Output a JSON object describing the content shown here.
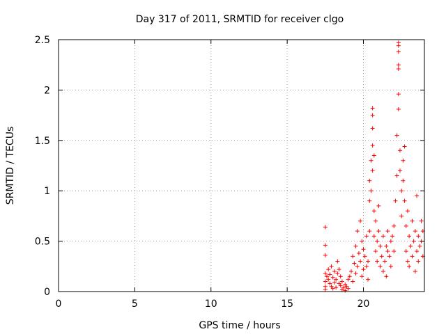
{
  "chart_data": {
    "type": "scatter",
    "title": "Day 317 of 2011, SRMTID for receiver clgo",
    "xlabel": "GPS time / hours",
    "ylabel": "SRMTID / TECUs",
    "xlim": [
      0,
      24
    ],
    "ylim": [
      0,
      2.5
    ],
    "xticks": [
      0,
      5,
      10,
      15,
      20
    ],
    "yticks": [
      0,
      0.5,
      1,
      1.5,
      2,
      2.5
    ],
    "xtick_labels": [
      "0",
      "5",
      "10",
      "15",
      "20"
    ],
    "ytick_labels": [
      "0",
      "0.5",
      "1",
      "1.5",
      "2",
      "2.5"
    ],
    "grid": true,
    "marker": "+",
    "color": "#ff0000",
    "series": [
      {
        "name": "SRMTID",
        "points": [
          [
            17.5,
            0.64
          ],
          [
            17.5,
            0.46
          ],
          [
            17.5,
            0.36
          ],
          [
            17.5,
            0.18
          ],
          [
            17.5,
            0.1
          ],
          [
            17.5,
            0.05
          ],
          [
            17.5,
            0.02
          ],
          [
            17.6,
            0.15
          ],
          [
            17.7,
            0.22
          ],
          [
            17.7,
            0.12
          ],
          [
            17.8,
            0.08
          ],
          [
            17.8,
            0.17
          ],
          [
            17.9,
            0.25
          ],
          [
            17.9,
            0.05
          ],
          [
            18.0,
            0.14
          ],
          [
            18.0,
            0.03
          ],
          [
            18.1,
            0.2
          ],
          [
            18.1,
            0.09
          ],
          [
            18.2,
            0.12
          ],
          [
            18.2,
            0.04
          ],
          [
            18.3,
            0.3
          ],
          [
            18.3,
            0.18
          ],
          [
            18.4,
            0.22
          ],
          [
            18.4,
            0.08
          ],
          [
            18.5,
            0.06
          ],
          [
            18.5,
            0.15
          ],
          [
            18.6,
            0.02
          ],
          [
            18.6,
            0.1
          ],
          [
            18.7,
            0.04
          ],
          [
            18.8,
            0.07
          ],
          [
            18.8,
            0.01
          ],
          [
            18.9,
            0.05
          ],
          [
            19.0,
            0.12
          ],
          [
            19.0,
            0.03
          ],
          [
            19.1,
            0.15
          ],
          [
            19.2,
            0.2
          ],
          [
            19.3,
            0.35
          ],
          [
            19.3,
            0.1
          ],
          [
            19.4,
            0.28
          ],
          [
            19.5,
            0.45
          ],
          [
            19.5,
            0.18
          ],
          [
            19.6,
            0.6
          ],
          [
            19.6,
            0.25
          ],
          [
            19.7,
            0.38
          ],
          [
            19.8,
            0.7
          ],
          [
            19.8,
            0.3
          ],
          [
            19.9,
            0.5
          ],
          [
            19.9,
            0.15
          ],
          [
            20.0,
            0.42
          ],
          [
            20.0,
            0.22
          ],
          [
            20.1,
            0.35
          ],
          [
            20.2,
            0.55
          ],
          [
            20.2,
            0.25
          ],
          [
            20.3,
            0.3
          ],
          [
            20.3,
            0.12
          ],
          [
            20.4,
            0.6
          ],
          [
            20.4,
            0.9
          ],
          [
            20.4,
            1.1
          ],
          [
            20.5,
            1.3
          ],
          [
            20.5,
            1.0
          ],
          [
            20.6,
            1.82
          ],
          [
            20.6,
            1.75
          ],
          [
            20.6,
            1.62
          ],
          [
            20.6,
            1.45
          ],
          [
            20.6,
            1.2
          ],
          [
            20.7,
            1.35
          ],
          [
            20.7,
            0.8
          ],
          [
            20.7,
            0.55
          ],
          [
            20.8,
            0.4
          ],
          [
            20.8,
            0.7
          ],
          [
            20.9,
            0.5
          ],
          [
            20.9,
            0.3
          ],
          [
            21.0,
            0.85
          ],
          [
            21.0,
            0.6
          ],
          [
            21.1,
            0.45
          ],
          [
            21.1,
            0.25
          ],
          [
            21.2,
            0.35
          ],
          [
            21.3,
            0.55
          ],
          [
            21.3,
            0.2
          ],
          [
            21.4,
            0.3
          ],
          [
            21.5,
            0.45
          ],
          [
            21.5,
            0.15
          ],
          [
            21.6,
            0.4
          ],
          [
            21.6,
            0.6
          ],
          [
            21.7,
            0.35
          ],
          [
            21.8,
            0.5
          ],
          [
            21.8,
            0.25
          ],
          [
            21.9,
            0.55
          ],
          [
            22.0,
            0.4
          ],
          [
            22.0,
            0.65
          ],
          [
            22.1,
            0.9
          ],
          [
            22.2,
            1.15
          ],
          [
            22.2,
            1.55
          ],
          [
            22.3,
            2.47
          ],
          [
            22.3,
            2.44
          ],
          [
            22.3,
            2.38
          ],
          [
            22.3,
            2.25
          ],
          [
            22.3,
            2.21
          ],
          [
            22.3,
            1.96
          ],
          [
            22.3,
            1.81
          ],
          [
            22.4,
            1.4
          ],
          [
            22.4,
            1.2
          ],
          [
            22.5,
            1.0
          ],
          [
            22.5,
            0.75
          ],
          [
            22.6,
            1.3
          ],
          [
            22.6,
            1.1
          ],
          [
            22.7,
            1.44
          ],
          [
            22.7,
            0.9
          ],
          [
            22.8,
            0.65
          ],
          [
            22.8,
            0.4
          ],
          [
            22.9,
            0.8
          ],
          [
            22.9,
            0.3
          ],
          [
            23.0,
            0.55
          ],
          [
            23.0,
            0.25
          ],
          [
            23.1,
            0.45
          ],
          [
            23.2,
            0.7
          ],
          [
            23.2,
            0.35
          ],
          [
            23.3,
            0.5
          ],
          [
            23.4,
            0.2
          ],
          [
            23.4,
            0.6
          ],
          [
            23.5,
            0.95
          ],
          [
            23.5,
            0.4
          ],
          [
            23.6,
            0.3
          ],
          [
            23.6,
            0.55
          ],
          [
            23.7,
            0.45
          ],
          [
            23.8,
            0.7
          ],
          [
            23.8,
            0.5
          ],
          [
            23.9,
            0.35
          ],
          [
            23.9,
            0.6
          ]
        ]
      }
    ]
  }
}
